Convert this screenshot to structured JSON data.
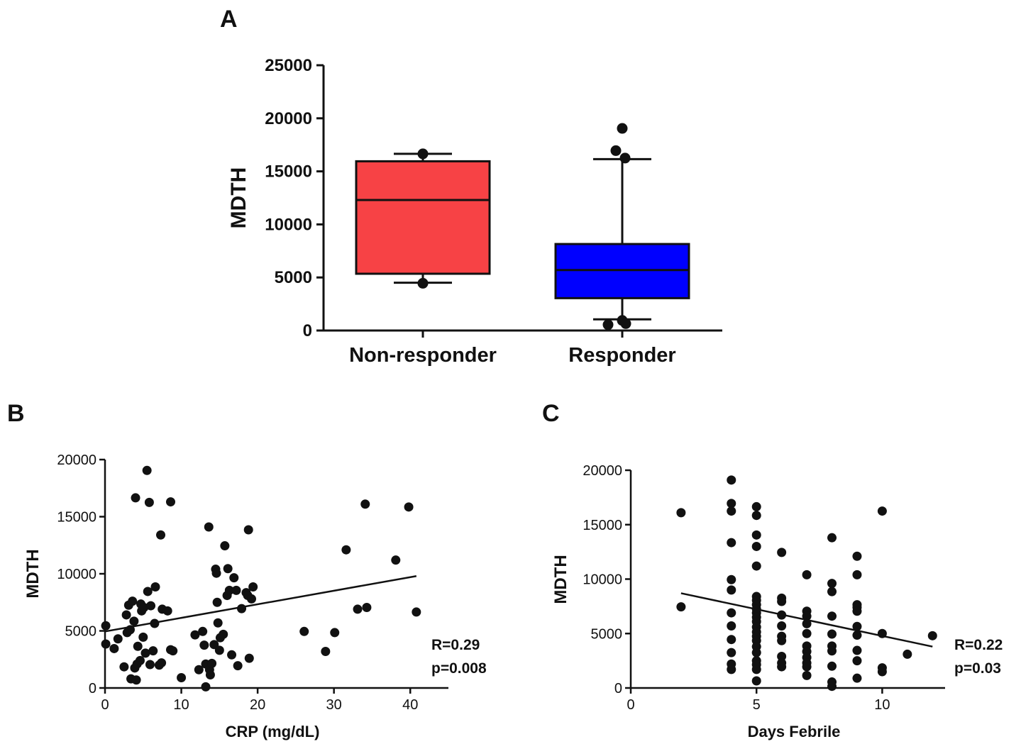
{
  "chart_data": [
    {
      "panel": "A",
      "type": "box",
      "ylabel": "MDTH",
      "ylim": [
        0,
        25000
      ],
      "yticks": [
        "0",
        "5000",
        "10000",
        "15000",
        "20000",
        "25000"
      ],
      "categories": [
        "Non-responder",
        "Responder"
      ],
      "colors": [
        "#f74245",
        "#0000ff"
      ],
      "boxes": [
        {
          "whisker_low": 4500,
          "q1": 5350,
          "median": 12300,
          "q3": 15950,
          "whisker_high": 16650,
          "outliers": [
            16650,
            4450
          ]
        },
        {
          "whisker_low": 1050,
          "q1": 3050,
          "median": 5700,
          "q3": 8150,
          "whisker_high": 16150,
          "outliers": [
            19050,
            16950,
            16250,
            950,
            550,
            650
          ]
        }
      ]
    },
    {
      "panel": "B",
      "type": "scatter",
      "xlabel": "CRP (mg/dL)",
      "ylabel": "MDTH",
      "xlim": [
        0,
        45
      ],
      "ylim": [
        0,
        20000
      ],
      "xticks": [
        "0",
        "10",
        "20",
        "30",
        "40"
      ],
      "yticks": [
        "0",
        "5000",
        "10000",
        "15000",
        "20000"
      ],
      "annotations": [
        "R=0.29",
        "p=0.008"
      ],
      "fit_line": [
        [
          0,
          4950
        ],
        [
          40.8,
          9800
        ]
      ],
      "points": [
        [
          0.1,
          5450
        ],
        [
          0.1,
          3850
        ],
        [
          1.2,
          3450
        ],
        [
          1.7,
          4300
        ],
        [
          2.5,
          1850
        ],
        [
          2.8,
          6400
        ],
        [
          2.9,
          4850
        ],
        [
          3.1,
          7250
        ],
        [
          3.3,
          5100
        ],
        [
          3.4,
          800
        ],
        [
          3.6,
          7600
        ],
        [
          3.8,
          5850
        ],
        [
          3.9,
          1750
        ],
        [
          4.0,
          16650
        ],
        [
          4.1,
          700
        ],
        [
          4.2,
          2100
        ],
        [
          4.3,
          3650
        ],
        [
          4.6,
          2400
        ],
        [
          4.7,
          7350
        ],
        [
          4.8,
          6750
        ],
        [
          5.0,
          4450
        ],
        [
          5.1,
          7050
        ],
        [
          5.3,
          3050
        ],
        [
          5.5,
          19050
        ],
        [
          5.6,
          8450
        ],
        [
          5.8,
          16250
        ],
        [
          5.9,
          2050
        ],
        [
          6.0,
          7200
        ],
        [
          6.3,
          3250
        ],
        [
          6.5,
          5650
        ],
        [
          6.6,
          8850
        ],
        [
          7.1,
          2000
        ],
        [
          7.3,
          13400
        ],
        [
          7.4,
          2200
        ],
        [
          7.5,
          6900
        ],
        [
          8.2,
          6750
        ],
        [
          8.6,
          3350
        ],
        [
          8.6,
          16300
        ],
        [
          8.9,
          3250
        ],
        [
          10.0,
          900
        ],
        [
          11.8,
          4650
        ],
        [
          12.3,
          1600
        ],
        [
          12.8,
          4950
        ],
        [
          13.0,
          3750
        ],
        [
          13.2,
          100
        ],
        [
          13.2,
          2100
        ],
        [
          13.6,
          14100
        ],
        [
          13.7,
          1600
        ],
        [
          13.8,
          1150
        ],
        [
          14.0,
          2150
        ],
        [
          14.3,
          3800
        ],
        [
          14.5,
          10400
        ],
        [
          14.6,
          10050
        ],
        [
          14.7,
          7500
        ],
        [
          14.8,
          5700
        ],
        [
          15.0,
          3300
        ],
        [
          15.1,
          4400
        ],
        [
          15.5,
          4700
        ],
        [
          15.7,
          12450
        ],
        [
          16.0,
          8100
        ],
        [
          16.1,
          10450
        ],
        [
          16.3,
          8550
        ],
        [
          16.6,
          2900
        ],
        [
          16.9,
          9650
        ],
        [
          17.2,
          8550
        ],
        [
          17.4,
          1950
        ],
        [
          17.9,
          6950
        ],
        [
          18.5,
          8350
        ],
        [
          18.7,
          8100
        ],
        [
          18.8,
          13850
        ],
        [
          18.9,
          2600
        ],
        [
          19.2,
          7800
        ],
        [
          19.4,
          8850
        ],
        [
          26.1,
          4950
        ],
        [
          28.9,
          3200
        ],
        [
          30.1,
          4850
        ],
        [
          31.6,
          12100
        ],
        [
          33.1,
          6900
        ],
        [
          34.1,
          16100
        ],
        [
          34.3,
          7050
        ],
        [
          38.1,
          11200
        ],
        [
          39.8,
          15850
        ],
        [
          40.8,
          6650
        ]
      ]
    },
    {
      "panel": "C",
      "type": "scatter",
      "xlabel": "Days Febrile",
      "ylabel": "MDTH",
      "xlim": [
        0,
        12.5
      ],
      "ylim": [
        0,
        20000
      ],
      "xticks": [
        "0",
        "5",
        "10"
      ],
      "yticks": [
        "0",
        "5000",
        "10000",
        "15000",
        "20000"
      ],
      "annotations": [
        "R=0.22",
        "p=0.03"
      ],
      "fit_line": [
        [
          2,
          8700
        ],
        [
          12,
          3800
        ]
      ],
      "points": [
        [
          2,
          16100
        ],
        [
          2,
          7450
        ],
        [
          4,
          19100
        ],
        [
          4,
          16950
        ],
        [
          4,
          16250
        ],
        [
          4,
          13350
        ],
        [
          4,
          9950
        ],
        [
          4,
          9000
        ],
        [
          4,
          6900
        ],
        [
          4,
          5700
        ],
        [
          4,
          4450
        ],
        [
          4,
          3250
        ],
        [
          4,
          2200
        ],
        [
          4,
          1700
        ],
        [
          5,
          16650
        ],
        [
          5,
          15850
        ],
        [
          5,
          14050
        ],
        [
          5,
          13000
        ],
        [
          5,
          11200
        ],
        [
          5,
          8400
        ],
        [
          5,
          8050
        ],
        [
          5,
          7650
        ],
        [
          5,
          7250
        ],
        [
          5,
          6900
        ],
        [
          5,
          6500
        ],
        [
          5,
          6100
        ],
        [
          5,
          5600
        ],
        [
          5,
          5150
        ],
        [
          5,
          4750
        ],
        [
          5,
          4350
        ],
        [
          5,
          3800
        ],
        [
          5,
          3250
        ],
        [
          5,
          2500
        ],
        [
          5,
          2150
        ],
        [
          5,
          1700
        ],
        [
          5,
          650
        ],
        [
          6,
          12450
        ],
        [
          6,
          8250
        ],
        [
          6,
          7950
        ],
        [
          6,
          6700
        ],
        [
          6,
          5700
        ],
        [
          6,
          4750
        ],
        [
          6,
          4350
        ],
        [
          6,
          2900
        ],
        [
          6,
          2300
        ],
        [
          6,
          1950
        ],
        [
          7,
          10400
        ],
        [
          7,
          7050
        ],
        [
          7,
          6600
        ],
        [
          7,
          5900
        ],
        [
          7,
          5000
        ],
        [
          7,
          3850
        ],
        [
          7,
          3350
        ],
        [
          7,
          2800
        ],
        [
          7,
          2300
        ],
        [
          7,
          1950
        ],
        [
          7,
          1150
        ],
        [
          8,
          13800
        ],
        [
          8,
          9600
        ],
        [
          8,
          8850
        ],
        [
          8,
          6600
        ],
        [
          8,
          4950
        ],
        [
          8,
          3850
        ],
        [
          8,
          3400
        ],
        [
          8,
          2000
        ],
        [
          8,
          550
        ],
        [
          8,
          150
        ],
        [
          9,
          12100
        ],
        [
          9,
          10400
        ],
        [
          9,
          7650
        ],
        [
          9,
          7400
        ],
        [
          9,
          7050
        ],
        [
          9,
          5650
        ],
        [
          9,
          4850
        ],
        [
          9,
          3450
        ],
        [
          9,
          2500
        ],
        [
          9,
          900
        ],
        [
          10,
          16250
        ],
        [
          10,
          5000
        ],
        [
          10,
          1850
        ],
        [
          10,
          1500
        ],
        [
          11,
          3100
        ],
        [
          12,
          4800
        ]
      ]
    }
  ]
}
